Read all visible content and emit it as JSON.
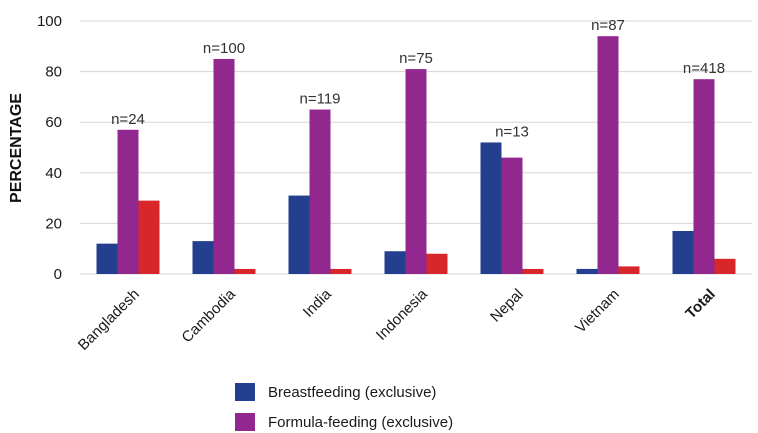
{
  "chart_data": {
    "type": "bar",
    "ylabel": "PERCENTAGE",
    "ylim": [
      0,
      100
    ],
    "yticks": [
      0,
      20,
      40,
      60,
      80,
      100
    ],
    "grid": true,
    "categories": [
      "Bangladesh",
      "Cambodia",
      "India",
      "Indonesia",
      "Nepal",
      "Vietnam",
      "Total"
    ],
    "bold_categories": [
      "Total"
    ],
    "n_labels": [
      "n=24",
      "n=100",
      "n=119",
      "n=75",
      "n=13",
      "n=87",
      "n=418"
    ],
    "series": [
      {
        "name": "Breastfeeding (exclusive)",
        "color": "#243f8f",
        "values": [
          12,
          13,
          31,
          9,
          52,
          2,
          17
        ]
      },
      {
        "name": "Formula-feeding (exclusive)",
        "color": "#92278f",
        "values": [
          57,
          85,
          65,
          81,
          46,
          94,
          77
        ]
      },
      {
        "name": "",
        "color": "#d9262a",
        "values": [
          29,
          2,
          2,
          8,
          2,
          3,
          6
        ]
      }
    ],
    "legend_placement": "bottom"
  }
}
